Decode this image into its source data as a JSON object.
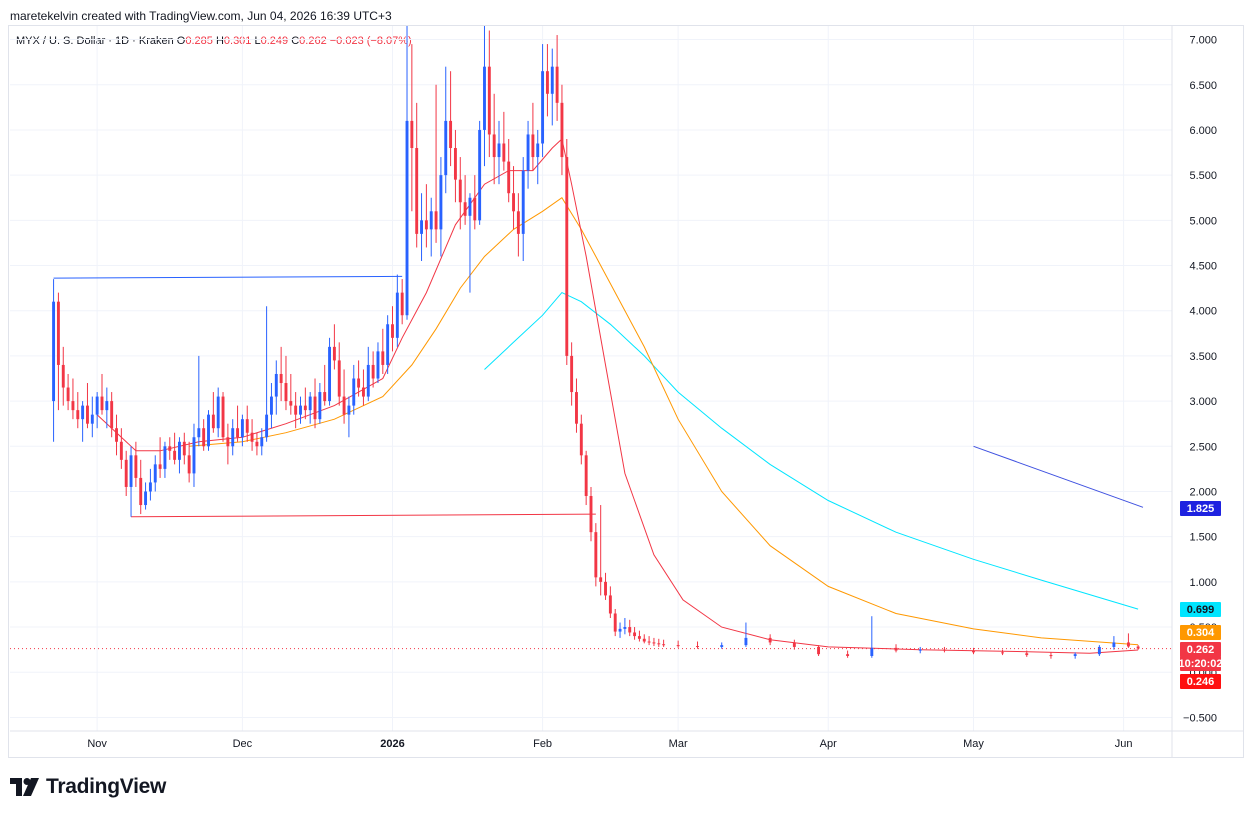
{
  "header": {
    "text": "maretekelvin created with TradingView.com, Jun 04, 2026 16:39 UTC+3"
  },
  "legend": {
    "symbol": "MYX / U. S. Dollar · 1D · Kraken",
    "o_label": "O",
    "o_value": "0.285",
    "h_label": "H",
    "h_value": "0.301",
    "l_label": "L",
    "l_value": "0.249",
    "c_label": "C",
    "c_value": "0.262",
    "change": "−0.023 (−8.07%)"
  },
  "footer": {
    "brand": "TradingView"
  },
  "colors": {
    "up": "#2962ff",
    "down": "#f23645",
    "ma_fast": "#f23645",
    "ma_mid": "#ff9800",
    "ma_slow": "#00e5ff",
    "trend": "#3f51e0"
  },
  "chart_data": {
    "type": "candlestick",
    "y_ticks": [
      "7.000",
      "6.500",
      "6.000",
      "5.500",
      "5.000",
      "4.500",
      "4.000",
      "3.500",
      "3.000",
      "2.500",
      "2.000",
      "1.500",
      "1.000",
      "0.500",
      "0.000",
      "−0.500"
    ],
    "y_range": [
      -0.65,
      7.15
    ],
    "x_labels": [
      {
        "label": "Nov",
        "date": "2025-11-01"
      },
      {
        "label": "Dec",
        "date": "2025-12-01"
      },
      {
        "label": "2026",
        "date": "2026-01-01"
      },
      {
        "label": "Feb",
        "date": "2026-02-01"
      },
      {
        "label": "Mar",
        "date": "2026-03-01"
      },
      {
        "label": "Apr",
        "date": "2026-04-01"
      },
      {
        "label": "May",
        "date": "2026-05-01"
      },
      {
        "label": "Jun",
        "date": "2026-06-01"
      }
    ],
    "x_range": [
      "2025-10-14",
      "2026-06-11"
    ],
    "price_badges": [
      {
        "value": "1.825",
        "color": "#1e22e0"
      },
      {
        "value": "0.699",
        "color": "#00e5ff",
        "text_color": "#131722"
      },
      {
        "value": "0.304",
        "color": "#ff9800"
      },
      {
        "value": "0.262",
        "color": "#f23645"
      },
      {
        "value": "10:20:02",
        "color": "#f23645"
      },
      {
        "value": "0.246",
        "color": "#ff1010"
      }
    ],
    "current_price": 0.262,
    "candles": [
      [
        "2025-10-23",
        3.0,
        4.35,
        2.55,
        4.1
      ],
      [
        "2025-10-24",
        4.1,
        4.2,
        2.9,
        3.4
      ],
      [
        "2025-10-25",
        3.4,
        3.6,
        2.95,
        3.15
      ],
      [
        "2025-10-26",
        3.15,
        3.3,
        2.9,
        3.0
      ],
      [
        "2025-10-27",
        3.0,
        3.25,
        2.8,
        2.9
      ],
      [
        "2025-10-28",
        2.9,
        3.1,
        2.7,
        2.8
      ],
      [
        "2025-10-29",
        2.8,
        3.0,
        2.55,
        2.95
      ],
      [
        "2025-10-30",
        2.95,
        3.2,
        2.7,
        2.75
      ],
      [
        "2025-10-31",
        2.75,
        3.05,
        2.6,
        2.85
      ],
      [
        "2025-11-01",
        2.85,
        3.1,
        2.7,
        3.05
      ],
      [
        "2025-11-02",
        3.05,
        3.3,
        2.85,
        2.9
      ],
      [
        "2025-11-03",
        2.9,
        3.15,
        2.7,
        3.0
      ],
      [
        "2025-11-04",
        3.0,
        3.1,
        2.6,
        2.7
      ],
      [
        "2025-11-05",
        2.7,
        2.85,
        2.4,
        2.55
      ],
      [
        "2025-11-06",
        2.55,
        2.7,
        2.25,
        2.35
      ],
      [
        "2025-11-07",
        2.35,
        2.45,
        1.95,
        2.05
      ],
      [
        "2025-11-08",
        2.05,
        2.5,
        1.72,
        2.4
      ],
      [
        "2025-11-09",
        2.4,
        2.55,
        2.05,
        2.15
      ],
      [
        "2025-11-10",
        2.15,
        2.35,
        1.75,
        1.85
      ],
      [
        "2025-11-11",
        1.85,
        2.1,
        1.8,
        2.0
      ],
      [
        "2025-11-12",
        2.0,
        2.25,
        1.9,
        2.1
      ],
      [
        "2025-11-13",
        2.1,
        2.4,
        2.0,
        2.3
      ],
      [
        "2025-11-14",
        2.3,
        2.6,
        2.15,
        2.25
      ],
      [
        "2025-11-15",
        2.25,
        2.55,
        2.15,
        2.5
      ],
      [
        "2025-11-16",
        2.5,
        2.6,
        2.35,
        2.45
      ],
      [
        "2025-11-17",
        2.45,
        2.65,
        2.3,
        2.35
      ],
      [
        "2025-11-18",
        2.35,
        2.6,
        2.2,
        2.55
      ],
      [
        "2025-11-19",
        2.55,
        2.65,
        2.3,
        2.4
      ],
      [
        "2025-11-20",
        2.4,
        2.55,
        2.1,
        2.2
      ],
      [
        "2025-11-21",
        2.2,
        2.75,
        2.05,
        2.6
      ],
      [
        "2025-11-22",
        2.6,
        3.5,
        2.5,
        2.7
      ],
      [
        "2025-11-23",
        2.7,
        2.8,
        2.45,
        2.5
      ],
      [
        "2025-11-24",
        2.5,
        2.9,
        2.45,
        2.85
      ],
      [
        "2025-11-25",
        2.85,
        3.1,
        2.65,
        2.7
      ],
      [
        "2025-11-26",
        2.7,
        3.15,
        2.6,
        3.05
      ],
      [
        "2025-11-27",
        3.05,
        3.1,
        2.55,
        2.6
      ],
      [
        "2025-11-28",
        2.6,
        2.75,
        2.3,
        2.5
      ],
      [
        "2025-11-29",
        2.5,
        2.8,
        2.4,
        2.7
      ],
      [
        "2025-11-30",
        2.7,
        2.95,
        2.55,
        2.6
      ],
      [
        "2025-12-01",
        2.6,
        2.85,
        2.5,
        2.8
      ],
      [
        "2025-12-02",
        2.8,
        2.95,
        2.55,
        2.65
      ],
      [
        "2025-12-03",
        2.65,
        2.8,
        2.45,
        2.55
      ],
      [
        "2025-12-04",
        2.55,
        2.65,
        2.4,
        2.5
      ],
      [
        "2025-12-05",
        2.5,
        2.7,
        2.4,
        2.6
      ],
      [
        "2025-12-06",
        2.6,
        4.05,
        2.55,
        2.85
      ],
      [
        "2025-12-07",
        2.85,
        3.2,
        2.7,
        3.05
      ],
      [
        "2025-12-08",
        3.05,
        3.45,
        2.85,
        3.3
      ],
      [
        "2025-12-09",
        3.3,
        3.6,
        3.0,
        3.2
      ],
      [
        "2025-12-10",
        3.2,
        3.5,
        2.9,
        3.0
      ],
      [
        "2025-12-11",
        3.0,
        3.3,
        2.85,
        2.95
      ],
      [
        "2025-12-12",
        2.95,
        3.1,
        2.7,
        2.85
      ],
      [
        "2025-12-13",
        2.85,
        3.05,
        2.75,
        2.95
      ],
      [
        "2025-12-14",
        2.95,
        3.15,
        2.8,
        2.9
      ],
      [
        "2025-12-15",
        2.9,
        3.1,
        2.75,
        3.05
      ],
      [
        "2025-12-16",
        3.05,
        3.25,
        2.7,
        2.8
      ],
      [
        "2025-12-17",
        2.8,
        3.2,
        2.75,
        3.1
      ],
      [
        "2025-12-18",
        3.1,
        3.4,
        2.95,
        3.0
      ],
      [
        "2025-12-19",
        3.0,
        3.7,
        2.95,
        3.6
      ],
      [
        "2025-12-20",
        3.6,
        3.85,
        3.35,
        3.45
      ],
      [
        "2025-12-21",
        3.45,
        3.65,
        2.95,
        3.05
      ],
      [
        "2025-12-22",
        3.05,
        3.35,
        2.75,
        2.85
      ],
      [
        "2025-12-23",
        2.85,
        3.05,
        2.6,
        2.95
      ],
      [
        "2025-12-24",
        2.95,
        3.4,
        2.85,
        3.25
      ],
      [
        "2025-12-25",
        3.25,
        3.45,
        3.05,
        3.15
      ],
      [
        "2025-12-26",
        3.15,
        3.35,
        2.95,
        3.05
      ],
      [
        "2025-12-27",
        3.05,
        3.6,
        3.0,
        3.4
      ],
      [
        "2025-12-28",
        3.4,
        3.55,
        3.15,
        3.25
      ],
      [
        "2025-12-29",
        3.25,
        3.65,
        3.2,
        3.55
      ],
      [
        "2025-12-30",
        3.55,
        3.8,
        3.3,
        3.4
      ],
      [
        "2025-12-31",
        3.4,
        3.95,
        3.3,
        3.85
      ],
      [
        "2026-01-01",
        3.85,
        4.05,
        3.55,
        3.7
      ],
      [
        "2026-01-02",
        3.7,
        4.4,
        3.6,
        4.2
      ],
      [
        "2026-01-03",
        4.2,
        4.35,
        3.85,
        3.95
      ],
      [
        "2026-01-04",
        3.95,
        7.15,
        3.9,
        6.1
      ],
      [
        "2026-01-05",
        6.1,
        6.95,
        5.1,
        5.8
      ],
      [
        "2026-01-06",
        5.8,
        6.3,
        4.7,
        4.85
      ],
      [
        "2026-01-07",
        4.85,
        5.3,
        4.55,
        5.0
      ],
      [
        "2026-01-08",
        5.0,
        5.4,
        4.7,
        4.9
      ],
      [
        "2026-01-09",
        4.9,
        5.25,
        4.6,
        5.1
      ],
      [
        "2026-01-10",
        5.1,
        6.5,
        4.75,
        4.9
      ],
      [
        "2026-01-11",
        4.9,
        5.7,
        4.6,
        5.5
      ],
      [
        "2026-01-12",
        5.5,
        6.7,
        5.3,
        6.1
      ],
      [
        "2026-01-13",
        6.1,
        6.65,
        5.6,
        5.8
      ],
      [
        "2026-01-14",
        5.8,
        6.0,
        5.2,
        5.45
      ],
      [
        "2026-01-15",
        5.45,
        5.7,
        4.9,
        5.2
      ],
      [
        "2026-01-16",
        5.2,
        5.5,
        4.95,
        5.05
      ],
      [
        "2026-01-17",
        5.05,
        5.3,
        4.2,
        5.25
      ],
      [
        "2026-01-18",
        5.25,
        5.5,
        4.9,
        5.0
      ],
      [
        "2026-01-19",
        5.0,
        6.1,
        4.95,
        6.0
      ],
      [
        "2026-01-20",
        6.0,
        7.15,
        5.6,
        6.7
      ],
      [
        "2026-01-21",
        6.7,
        7.1,
        5.7,
        5.95
      ],
      [
        "2026-01-22",
        5.95,
        6.4,
        5.4,
        5.7
      ],
      [
        "2026-01-23",
        5.7,
        6.1,
        5.4,
        5.85
      ],
      [
        "2026-01-24",
        5.85,
        6.2,
        5.55,
        5.65
      ],
      [
        "2026-01-25",
        5.65,
        5.9,
        5.2,
        5.3
      ],
      [
        "2026-01-26",
        5.3,
        5.6,
        4.9,
        5.1
      ],
      [
        "2026-01-27",
        5.1,
        5.3,
        4.6,
        4.85
      ],
      [
        "2026-01-28",
        4.85,
        5.7,
        4.55,
        5.55
      ],
      [
        "2026-01-29",
        5.55,
        6.1,
        5.35,
        5.95
      ],
      [
        "2026-01-30",
        5.95,
        6.3,
        5.55,
        5.7
      ],
      [
        "2026-01-31",
        5.7,
        6.0,
        5.4,
        5.85
      ],
      [
        "2026-02-01",
        5.85,
        6.95,
        5.7,
        6.65
      ],
      [
        "2026-02-02",
        6.65,
        6.95,
        6.15,
        6.4
      ],
      [
        "2026-02-03",
        6.4,
        6.9,
        6.05,
        6.7
      ],
      [
        "2026-02-04",
        6.7,
        7.05,
        6.1,
        6.3
      ],
      [
        "2026-02-05",
        6.3,
        6.5,
        5.5,
        5.7
      ],
      [
        "2026-02-06",
        5.7,
        5.9,
        3.4,
        3.5
      ],
      [
        "2026-02-07",
        3.5,
        3.65,
        2.95,
        3.1
      ],
      [
        "2026-02-08",
        3.1,
        3.25,
        2.65,
        2.75
      ],
      [
        "2026-02-09",
        2.75,
        2.85,
        2.3,
        2.4
      ],
      [
        "2026-02-10",
        2.4,
        2.45,
        1.85,
        1.95
      ],
      [
        "2026-02-11",
        1.95,
        2.05,
        1.45,
        1.55
      ],
      [
        "2026-02-12",
        1.55,
        1.65,
        0.95,
        1.05
      ],
      [
        "2026-02-13",
        1.05,
        1.85,
        0.85,
        1.0
      ],
      [
        "2026-02-14",
        1.0,
        1.1,
        0.8,
        0.85
      ],
      [
        "2026-02-15",
        0.85,
        0.95,
        0.6,
        0.65
      ],
      [
        "2026-02-16",
        0.65,
        0.7,
        0.4,
        0.45
      ],
      [
        "2026-02-17",
        0.45,
        0.55,
        0.38,
        0.48
      ],
      [
        "2026-02-18",
        0.48,
        0.6,
        0.42,
        0.5
      ],
      [
        "2026-02-19",
        0.5,
        0.58,
        0.4,
        0.44
      ],
      [
        "2026-02-20",
        0.44,
        0.5,
        0.36,
        0.4
      ],
      [
        "2026-02-21",
        0.4,
        0.46,
        0.34,
        0.37
      ],
      [
        "2026-02-22",
        0.37,
        0.42,
        0.32,
        0.34
      ],
      [
        "2026-02-23",
        0.34,
        0.4,
        0.3,
        0.33
      ],
      [
        "2026-02-24",
        0.33,
        0.38,
        0.29,
        0.32
      ],
      [
        "2026-02-25",
        0.32,
        0.37,
        0.28,
        0.31
      ],
      [
        "2026-02-26",
        0.31,
        0.36,
        0.28,
        0.3
      ],
      [
        "2026-03-01",
        0.3,
        0.35,
        0.27,
        0.29
      ],
      [
        "2026-03-05",
        0.29,
        0.34,
        0.26,
        0.28
      ],
      [
        "2026-03-10",
        0.28,
        0.33,
        0.26,
        0.3
      ],
      [
        "2026-03-15",
        0.3,
        0.55,
        0.28,
        0.38
      ],
      [
        "2026-03-20",
        0.38,
        0.42,
        0.3,
        0.33
      ],
      [
        "2026-03-25",
        0.33,
        0.36,
        0.25,
        0.28
      ],
      [
        "2026-03-30",
        0.28,
        0.3,
        0.18,
        0.2
      ],
      [
        "2026-04-05",
        0.2,
        0.24,
        0.16,
        0.18
      ],
      [
        "2026-04-10",
        0.18,
        0.62,
        0.16,
        0.27
      ],
      [
        "2026-04-15",
        0.27,
        0.31,
        0.22,
        0.24
      ],
      [
        "2026-04-20",
        0.24,
        0.28,
        0.21,
        0.25
      ],
      [
        "2026-04-25",
        0.25,
        0.28,
        0.22,
        0.24
      ],
      [
        "2026-05-01",
        0.24,
        0.27,
        0.2,
        0.22
      ],
      [
        "2026-05-07",
        0.22,
        0.25,
        0.19,
        0.21
      ],
      [
        "2026-05-12",
        0.21,
        0.24,
        0.17,
        0.19
      ],
      [
        "2026-05-17",
        0.19,
        0.22,
        0.15,
        0.18
      ],
      [
        "2026-05-22",
        0.18,
        0.22,
        0.15,
        0.2
      ],
      [
        "2026-05-27",
        0.2,
        0.3,
        0.18,
        0.28
      ],
      [
        "2026-05-30",
        0.28,
        0.4,
        0.25,
        0.33
      ],
      [
        "2026-06-02",
        0.33,
        0.43,
        0.27,
        0.285
      ],
      [
        "2026-06-04",
        0.285,
        0.301,
        0.249,
        0.262
      ]
    ],
    "ma_fast": [
      [
        "2025-11-01",
        2.85
      ],
      [
        "2025-11-05",
        2.65
      ],
      [
        "2025-11-09",
        2.45
      ],
      [
        "2025-11-14",
        2.45
      ],
      [
        "2025-11-22",
        2.55
      ],
      [
        "2025-12-01",
        2.6
      ],
      [
        "2025-12-10",
        2.75
      ],
      [
        "2025-12-20",
        2.95
      ],
      [
        "2025-12-30",
        3.25
      ],
      [
        "2026-01-03",
        3.7
      ],
      [
        "2026-01-08",
        4.2
      ],
      [
        "2026-01-14",
        4.95
      ],
      [
        "2026-01-20",
        5.4
      ],
      [
        "2026-01-25",
        5.55
      ],
      [
        "2026-01-30",
        5.55
      ],
      [
        "2026-02-03",
        5.8
      ],
      [
        "2026-02-05",
        5.9
      ],
      [
        "2026-02-07",
        5.4
      ],
      [
        "2026-02-10",
        4.6
      ],
      [
        "2026-02-14",
        3.4
      ],
      [
        "2026-02-18",
        2.2
      ],
      [
        "2026-02-24",
        1.3
      ],
      [
        "2026-03-02",
        0.8
      ],
      [
        "2026-03-10",
        0.5
      ],
      [
        "2026-03-20",
        0.36
      ],
      [
        "2026-04-01",
        0.28
      ],
      [
        "2026-04-20",
        0.25
      ],
      [
        "2026-05-10",
        0.23
      ],
      [
        "2026-05-25",
        0.21
      ],
      [
        "2026-06-04",
        0.246
      ]
    ],
    "ma_mid": [
      [
        "2025-11-20",
        2.5
      ],
      [
        "2025-12-01",
        2.55
      ],
      [
        "2025-12-10",
        2.65
      ],
      [
        "2025-12-20",
        2.8
      ],
      [
        "2025-12-30",
        3.05
      ],
      [
        "2026-01-05",
        3.4
      ],
      [
        "2026-01-10",
        3.8
      ],
      [
        "2026-01-15",
        4.25
      ],
      [
        "2026-01-20",
        4.6
      ],
      [
        "2026-01-26",
        4.9
      ],
      [
        "2026-02-01",
        5.1
      ],
      [
        "2026-02-05",
        5.25
      ],
      [
        "2026-02-09",
        4.9
      ],
      [
        "2026-02-15",
        4.3
      ],
      [
        "2026-02-22",
        3.6
      ],
      [
        "2026-03-01",
        2.8
      ],
      [
        "2026-03-10",
        2.0
      ],
      [
        "2026-03-20",
        1.4
      ],
      [
        "2026-04-01",
        0.95
      ],
      [
        "2026-04-15",
        0.65
      ],
      [
        "2026-05-01",
        0.48
      ],
      [
        "2026-05-15",
        0.38
      ],
      [
        "2026-06-04",
        0.304
      ]
    ],
    "ma_slow": [
      [
        "2026-01-20",
        3.35
      ],
      [
        "2026-01-26",
        3.65
      ],
      [
        "2026-02-01",
        3.95
      ],
      [
        "2026-02-05",
        4.2
      ],
      [
        "2026-02-09",
        4.1
      ],
      [
        "2026-02-15",
        3.85
      ],
      [
        "2026-02-22",
        3.5
      ],
      [
        "2026-03-01",
        3.1
      ],
      [
        "2026-03-10",
        2.7
      ],
      [
        "2026-03-20",
        2.3
      ],
      [
        "2026-04-01",
        1.9
      ],
      [
        "2026-04-15",
        1.55
      ],
      [
        "2026-05-01",
        1.25
      ],
      [
        "2026-05-15",
        1.02
      ],
      [
        "2026-06-04",
        0.699
      ]
    ],
    "trendline": [
      [
        "2026-05-01",
        2.5
      ],
      [
        "2026-06-05",
        1.825
      ]
    ],
    "h_lines": [
      {
        "from": "2025-10-23",
        "to": "2026-01-03",
        "y1": 4.36,
        "y2": 4.38,
        "color": "#2962ff"
      },
      {
        "from": "2025-11-08",
        "to": "2026-02-12",
        "y1": 1.72,
        "y2": 1.75,
        "color": "#f23645"
      }
    ]
  }
}
